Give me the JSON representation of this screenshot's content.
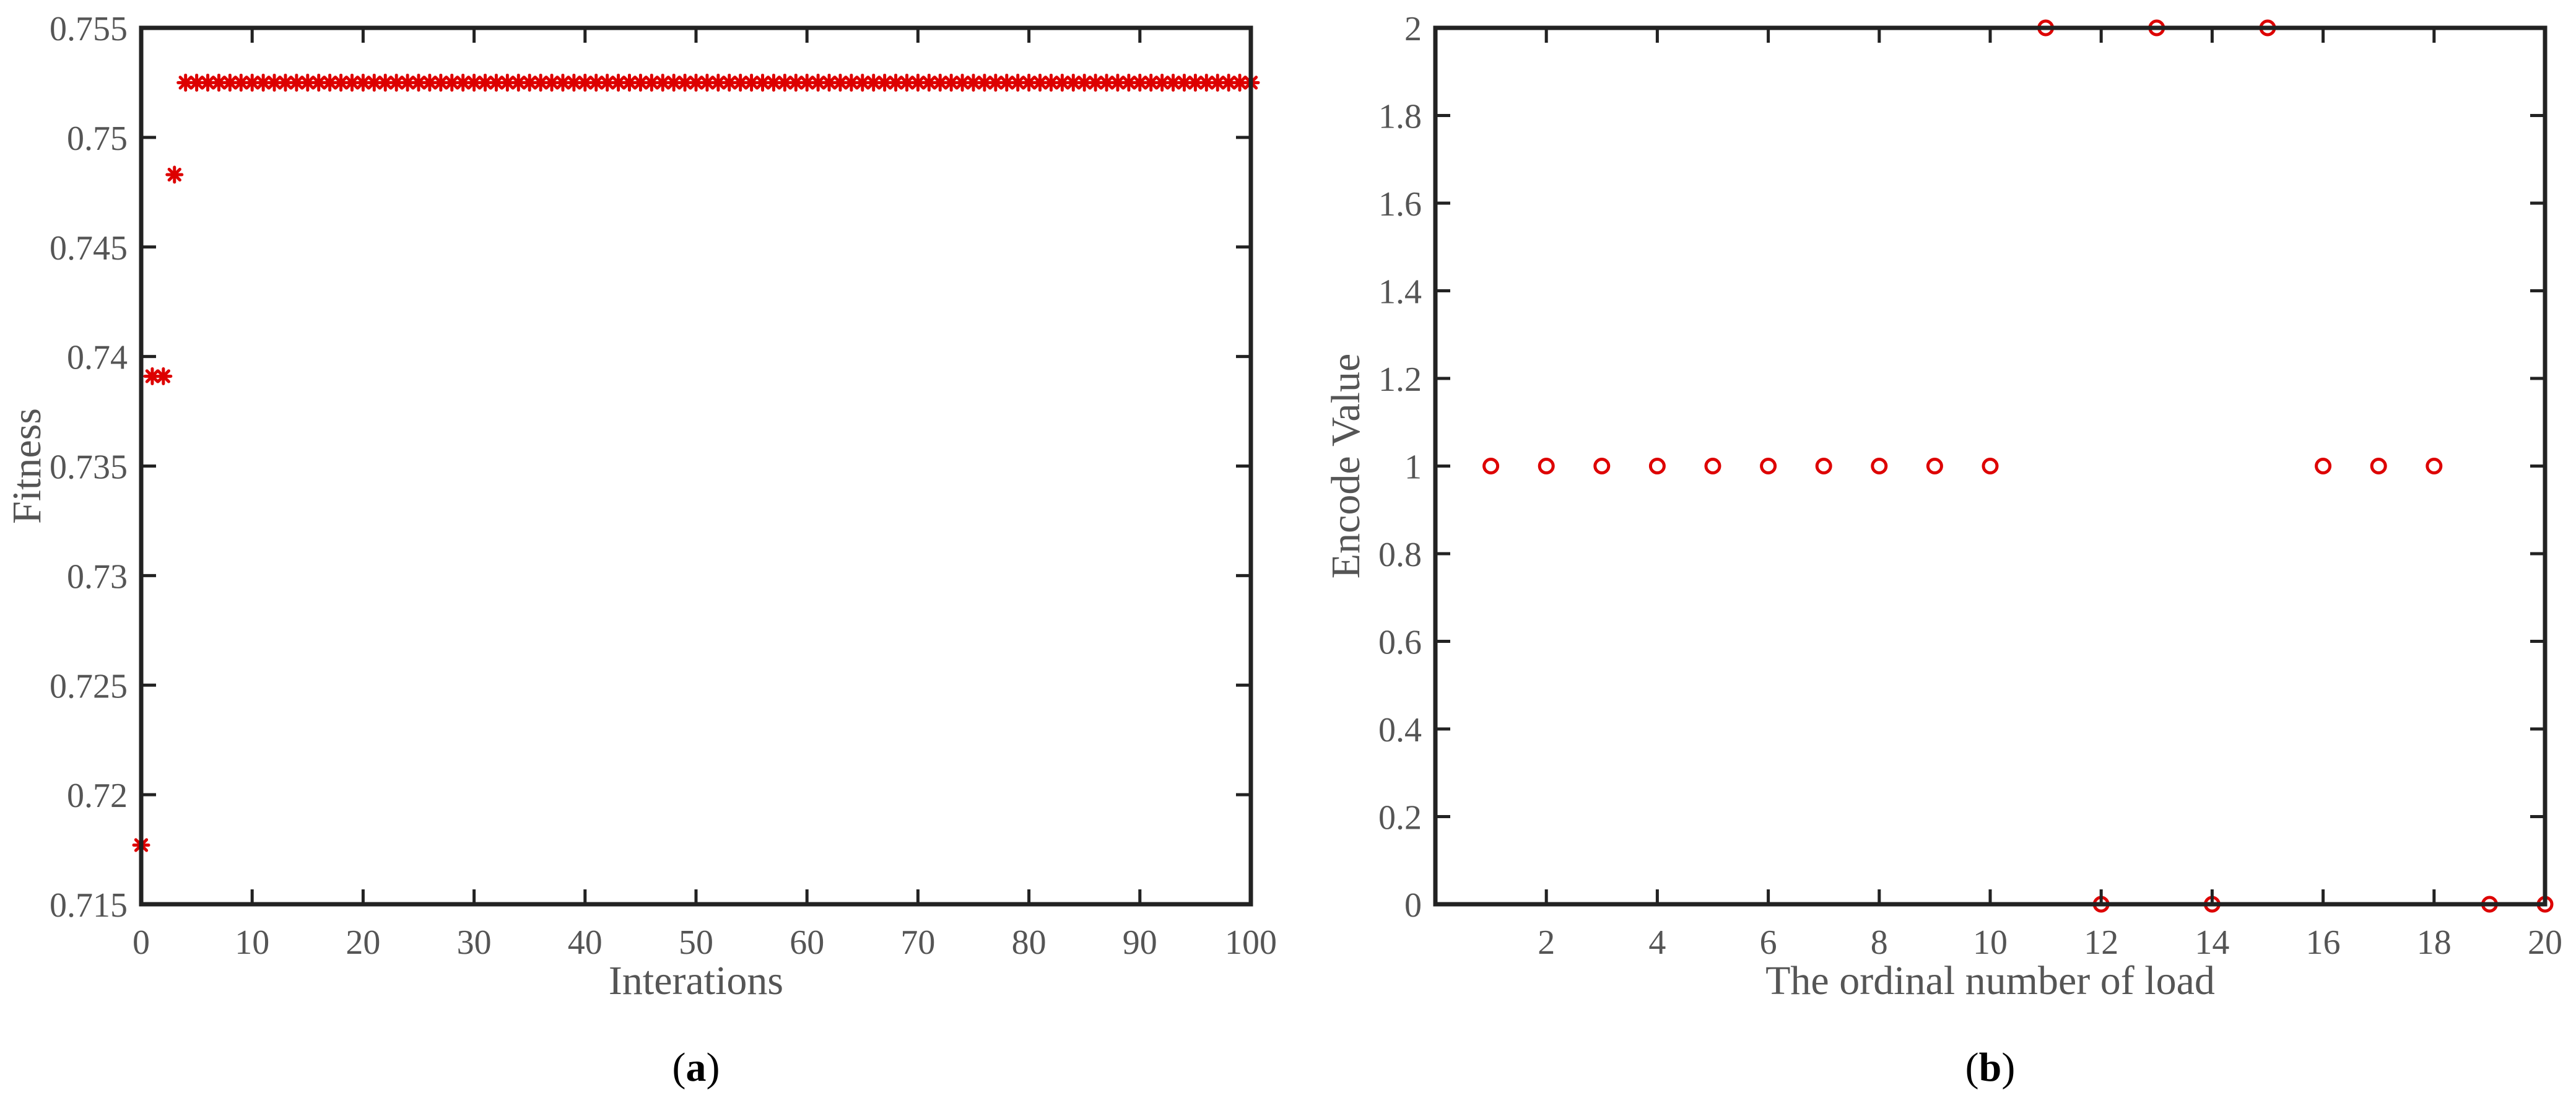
{
  "colors": {
    "marker": "#dd0000",
    "axis": "#222222",
    "text": "#555555"
  },
  "chart_data": [
    {
      "type": "scatter",
      "panel": "a",
      "caption": {
        "open": "(",
        "letter": "a",
        "close": ")"
      },
      "title": "",
      "xlabel": "Interations",
      "ylabel": "Fitness",
      "xlim": [
        0,
        100
      ],
      "ylim": [
        0.715,
        0.755
      ],
      "xticks": [
        "0",
        "10",
        "20",
        "30",
        "40",
        "50",
        "60",
        "70",
        "80",
        "90",
        "100"
      ],
      "yticks": [
        "0.715",
        "0.72",
        "0.725",
        "0.73",
        "0.735",
        "0.74",
        "0.745",
        "0.75",
        "0.755"
      ],
      "xtick_values": [
        0,
        10,
        20,
        30,
        40,
        50,
        60,
        70,
        80,
        90,
        100
      ],
      "ytick_values": [
        0.715,
        0.72,
        0.725,
        0.73,
        0.735,
        0.74,
        0.745,
        0.75,
        0.755
      ],
      "marker": "asterisk",
      "grid": false,
      "series": [
        {
          "x": [
            0,
            1,
            2,
            3,
            4,
            5,
            6,
            7,
            8,
            9,
            10,
            11,
            12,
            13,
            14,
            15,
            16,
            17,
            18,
            19,
            20,
            21,
            22,
            23,
            24,
            25,
            26,
            27,
            28,
            29,
            30,
            31,
            32,
            33,
            34,
            35,
            36,
            37,
            38,
            39,
            40,
            41,
            42,
            43,
            44,
            45,
            46,
            47,
            48,
            49,
            50,
            51,
            52,
            53,
            54,
            55,
            56,
            57,
            58,
            59,
            60,
            61,
            62,
            63,
            64,
            65,
            66,
            67,
            68,
            69,
            70,
            71,
            72,
            73,
            74,
            75,
            76,
            77,
            78,
            79,
            80,
            81,
            82,
            83,
            84,
            85,
            86,
            87,
            88,
            89,
            90,
            91,
            92,
            93,
            94,
            95,
            96,
            97,
            98,
            99,
            100
          ],
          "y": [
            0.7177,
            0.7391,
            0.7391,
            0.7483,
            0.7525,
            0.7525,
            0.7525,
            0.7525,
            0.7525,
            0.7525,
            0.7525,
            0.7525,
            0.7525,
            0.7525,
            0.7525,
            0.7525,
            0.7525,
            0.7525,
            0.7525,
            0.7525,
            0.7525,
            0.7525,
            0.7525,
            0.7525,
            0.7525,
            0.7525,
            0.7525,
            0.7525,
            0.7525,
            0.7525,
            0.7525,
            0.7525,
            0.7525,
            0.7525,
            0.7525,
            0.7525,
            0.7525,
            0.7525,
            0.7525,
            0.7525,
            0.7525,
            0.7525,
            0.7525,
            0.7525,
            0.7525,
            0.7525,
            0.7525,
            0.7525,
            0.7525,
            0.7525,
            0.7525,
            0.7525,
            0.7525,
            0.7525,
            0.7525,
            0.7525,
            0.7525,
            0.7525,
            0.7525,
            0.7525,
            0.7525,
            0.7525,
            0.7525,
            0.7525,
            0.7525,
            0.7525,
            0.7525,
            0.7525,
            0.7525,
            0.7525,
            0.7525,
            0.7525,
            0.7525,
            0.7525,
            0.7525,
            0.7525,
            0.7525,
            0.7525,
            0.7525,
            0.7525,
            0.7525,
            0.7525,
            0.7525,
            0.7525,
            0.7525,
            0.7525,
            0.7525,
            0.7525,
            0.7525,
            0.7525,
            0.7525,
            0.7525,
            0.7525,
            0.7525,
            0.7525,
            0.7525,
            0.7525,
            0.7525,
            0.7525,
            0.7525,
            0.7525
          ]
        }
      ]
    },
    {
      "type": "scatter",
      "panel": "b",
      "caption": {
        "open": "(",
        "letter": "b",
        "close": ")"
      },
      "title": "",
      "xlabel": "The ordinal number of load",
      "ylabel": "Encode Value",
      "xlim": [
        0,
        20
      ],
      "ylim": [
        0,
        2
      ],
      "xticks": [
        "2",
        "4",
        "6",
        "8",
        "10",
        "12",
        "14",
        "16",
        "18",
        "20"
      ],
      "yticks": [
        "0",
        "0.2",
        "0.4",
        "0.6",
        "0.8",
        "1",
        "1.2",
        "1.4",
        "1.6",
        "1.8",
        "2"
      ],
      "xtick_values": [
        2,
        4,
        6,
        8,
        10,
        12,
        14,
        16,
        18,
        20
      ],
      "ytick_values": [
        0,
        0.2,
        0.4,
        0.6,
        0.8,
        1,
        1.2,
        1.4,
        1.6,
        1.8,
        2
      ],
      "marker": "circle",
      "grid": false,
      "series": [
        {
          "x": [
            1,
            2,
            3,
            4,
            5,
            6,
            7,
            8,
            9,
            10,
            11,
            12,
            13,
            14,
            15,
            16,
            17,
            18,
            19,
            20
          ],
          "y": [
            1,
            1,
            1,
            1,
            1,
            1,
            1,
            1,
            1,
            1,
            2,
            0,
            2,
            0,
            2,
            1,
            1,
            1,
            0,
            0
          ]
        }
      ]
    }
  ]
}
